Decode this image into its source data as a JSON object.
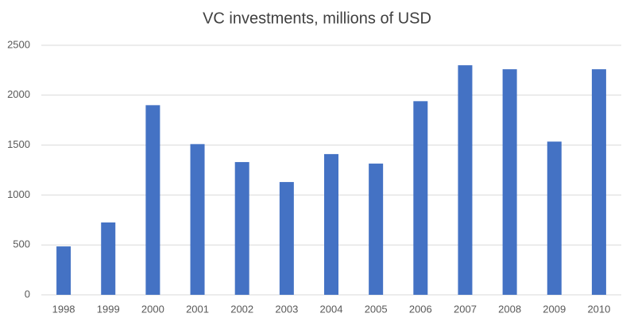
{
  "chart_data": {
    "type": "bar",
    "title": "VC investments, millions of USD",
    "categories": [
      "1998",
      "1999",
      "2000",
      "2001",
      "2002",
      "2003",
      "2004",
      "2005",
      "2006",
      "2007",
      "2008",
      "2009",
      "2010"
    ],
    "values": [
      485,
      725,
      1900,
      1510,
      1330,
      1130,
      1410,
      1315,
      1940,
      2300,
      2260,
      1535,
      2260
    ],
    "color": "#4472c4",
    "ylim": [
      0,
      2500
    ],
    "yticks": [
      0,
      500,
      1000,
      1500,
      2000,
      2500
    ],
    "grid": true
  }
}
